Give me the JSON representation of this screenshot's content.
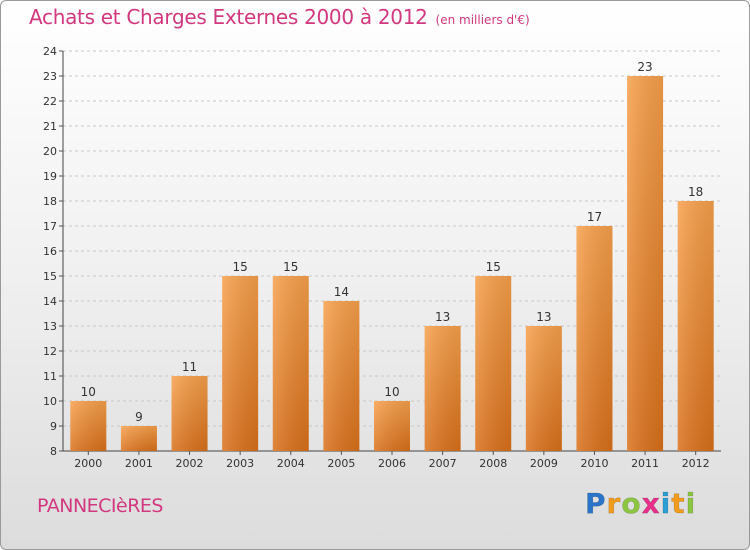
{
  "title": "Achats et Charges Externes 2000 à 2012",
  "unit": "(en milliers d'€)",
  "commune": "PANNECIèRES",
  "logo": {
    "letters": [
      {
        "ch": "P",
        "color": "#2a74c9"
      },
      {
        "ch": "r",
        "color": "#f39b1d"
      },
      {
        "ch": "o",
        "color": "#8cc63f"
      },
      {
        "ch": "x",
        "color": "#e8308a"
      },
      {
        "ch": "i",
        "color": "#2a9fd6"
      },
      {
        "ch": "t",
        "color": "#f39b1d"
      },
      {
        "ch": "i",
        "color": "#8cc63f"
      }
    ]
  },
  "chart_data": {
    "type": "bar",
    "categories": [
      "2000",
      "2001",
      "2002",
      "2003",
      "2004",
      "2005",
      "2006",
      "2007",
      "2008",
      "2009",
      "2010",
      "2011",
      "2012"
    ],
    "values": [
      10,
      9,
      11,
      15,
      15,
      14,
      10,
      13,
      15,
      13,
      17,
      23,
      18
    ],
    "ylim": [
      8,
      24
    ],
    "yticks": [
      8,
      9,
      10,
      11,
      12,
      13,
      14,
      15,
      16,
      17,
      18,
      19,
      20,
      21,
      22,
      23,
      24
    ],
    "grid": true,
    "bar_color": "#f08a2e",
    "title_color": "#d2387f"
  }
}
